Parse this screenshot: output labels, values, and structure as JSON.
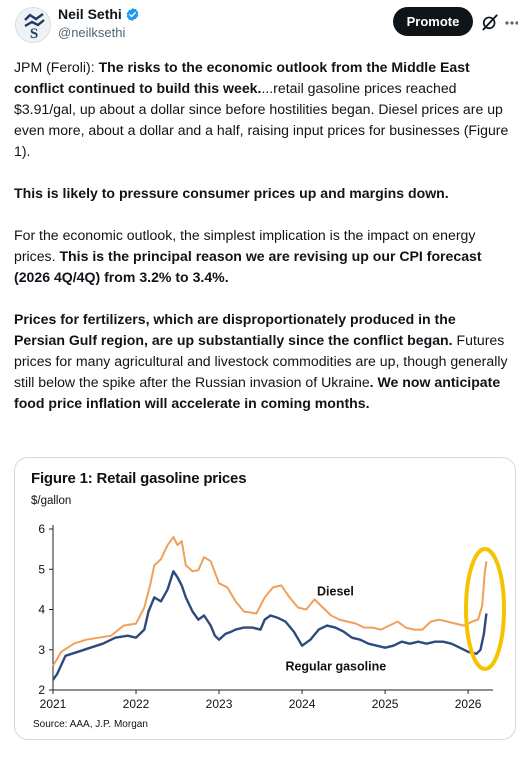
{
  "author": {
    "display_name": "Neil Sethi",
    "handle": "@neilksethi",
    "verified": true,
    "avatar_icon": "stock-chart-logo-icon"
  },
  "actions": {
    "promote_label": "Promote",
    "grok_icon": "grok-icon",
    "more_icon": "more-icon"
  },
  "tweet": {
    "p1_pre": "JPM (Feroli): ",
    "p1_bold": "The risks to the economic outlook from the Middle East conflict continued to build this week.",
    "p1_rest": "...retail gasoline prices reached $3.91/gal, up about a dollar since before hostilities began. Diesel prices are up even more, about a dollar and a half, raising input prices for businesses (Figure 1).",
    "p2_bold": "This is likely to pressure consumer prices up and margins down.",
    "p3_pre": "For the economic outlook, the simplest implication is the impact on energy prices. ",
    "p3_bold": "This is the principal reason we are revising up our CPI forecast (2026 4Q/4Q) from 3.2% to 3.4%.",
    "p4_bold": "Prices for fertilizers, which are disproportionately produced in the Persian Gulf region, are up substantially since the conflict began.",
    "p4_mid": " Futures prices for many agricultural and livestock commodities are up, though generally still below the spike after the Russian invasion of Ukraine",
    "p4_bold2": ". We now anticipate food price inflation will accelerate in coming months."
  },
  "figure": {
    "title": "Figure 1: Retail gasoline prices",
    "unit": "$/gallon",
    "source": "Source: AAA, J.P. Morgan"
  },
  "chart_data": {
    "type": "line",
    "title": "Figure 1: Retail gasoline prices",
    "ylabel": "$/gallon",
    "xlim": [
      2021.0,
      2026.3
    ],
    "ylim": [
      2,
      6
    ],
    "yticks": [
      2,
      3,
      4,
      5,
      6
    ],
    "xticks": [
      2021,
      2022,
      2023,
      2024,
      2025,
      2026
    ],
    "xtick_labels": [
      "2021",
      "2022",
      "2023",
      "2024",
      "2025",
      "2026"
    ],
    "highlight_color": "#f6c300",
    "series": [
      {
        "name": "Diesel",
        "color": "#f0a05a",
        "x": [
          2021.0,
          2021.1,
          2021.25,
          2021.4,
          2021.55,
          2021.7,
          2021.85,
          2022.0,
          2022.1,
          2022.17,
          2022.22,
          2022.3,
          2022.38,
          2022.45,
          2022.5,
          2022.55,
          2022.6,
          2022.68,
          2022.75,
          2022.82,
          2022.9,
          2023.0,
          2023.1,
          2023.2,
          2023.3,
          2023.45,
          2023.55,
          2023.65,
          2023.75,
          2023.85,
          2023.95,
          2024.05,
          2024.15,
          2024.25,
          2024.35,
          2024.45,
          2024.55,
          2024.65,
          2024.75,
          2024.85,
          2024.95,
          2025.05,
          2025.15,
          2025.25,
          2025.35,
          2025.45,
          2025.55,
          2025.65,
          2025.75,
          2025.85,
          2025.95,
          2026.05,
          2026.12,
          2026.17,
          2026.2,
          2026.22
        ],
        "y": [
          2.6,
          2.95,
          3.15,
          3.25,
          3.3,
          3.35,
          3.6,
          3.65,
          4.05,
          4.6,
          5.1,
          5.25,
          5.6,
          5.8,
          5.6,
          5.7,
          5.1,
          4.95,
          4.98,
          5.3,
          5.2,
          4.65,
          4.55,
          4.2,
          3.95,
          3.9,
          4.3,
          4.55,
          4.6,
          4.3,
          4.05,
          4.0,
          4.25,
          4.05,
          3.85,
          3.75,
          3.7,
          3.65,
          3.55,
          3.55,
          3.5,
          3.6,
          3.7,
          3.55,
          3.5,
          3.5,
          3.7,
          3.75,
          3.7,
          3.65,
          3.6,
          3.7,
          3.75,
          4.1,
          4.9,
          5.2
        ]
      },
      {
        "name": "Regular gasoline",
        "color": "#2e4a7d",
        "x": [
          2021.0,
          2021.05,
          2021.15,
          2021.3,
          2021.45,
          2021.6,
          2021.75,
          2021.9,
          2022.0,
          2022.1,
          2022.15,
          2022.22,
          2022.3,
          2022.38,
          2022.45,
          2022.5,
          2022.55,
          2022.6,
          2022.68,
          2022.75,
          2022.82,
          2022.9,
          2022.95,
          2023.0,
          2023.08,
          2023.15,
          2023.2,
          2023.3,
          2023.4,
          2023.5,
          2023.55,
          2023.62,
          2023.7,
          2023.8,
          2023.9,
          2024.0,
          2024.1,
          2024.2,
          2024.3,
          2024.4,
          2024.5,
          2024.6,
          2024.7,
          2024.8,
          2024.9,
          2025.0,
          2025.1,
          2025.2,
          2025.3,
          2025.4,
          2025.5,
          2025.6,
          2025.7,
          2025.8,
          2025.9,
          2026.0,
          2026.1,
          2026.15,
          2026.19,
          2026.22
        ],
        "y": [
          2.25,
          2.4,
          2.85,
          2.95,
          3.05,
          3.15,
          3.3,
          3.35,
          3.3,
          3.5,
          3.95,
          4.3,
          4.2,
          4.5,
          4.95,
          4.8,
          4.6,
          4.3,
          3.95,
          3.75,
          3.85,
          3.6,
          3.35,
          3.25,
          3.4,
          3.45,
          3.5,
          3.55,
          3.55,
          3.5,
          3.75,
          3.85,
          3.8,
          3.7,
          3.45,
          3.1,
          3.25,
          3.5,
          3.6,
          3.55,
          3.45,
          3.3,
          3.25,
          3.15,
          3.1,
          3.05,
          3.1,
          3.2,
          3.15,
          3.2,
          3.15,
          3.2,
          3.2,
          3.15,
          3.05,
          2.95,
          2.9,
          3.0,
          3.4,
          3.9
        ]
      }
    ],
    "annotations": [
      {
        "text": "Diesel",
        "series": "Diesel"
      },
      {
        "text": "Regular gasoline",
        "series": "Regular gasoline"
      }
    ]
  }
}
